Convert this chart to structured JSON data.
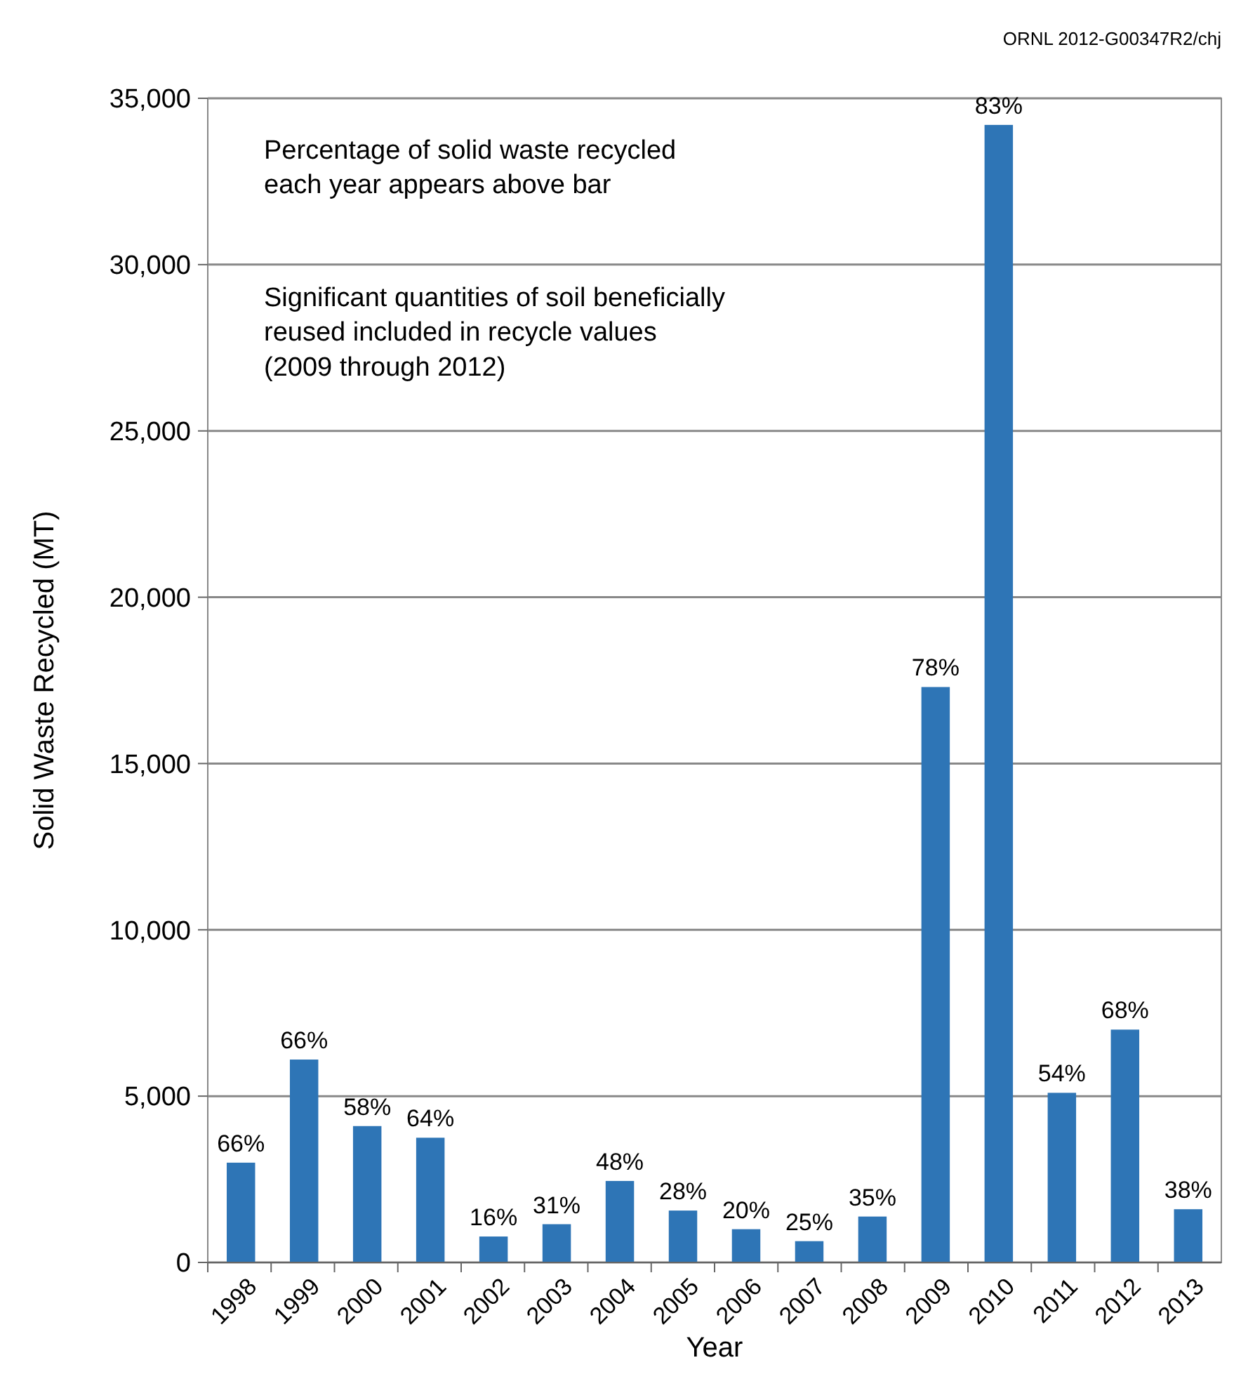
{
  "chart_data": {
    "type": "bar",
    "xlabel": "Year",
    "ylabel": "Solid Waste Recycled (MT)",
    "categories": [
      "1998",
      "1999",
      "2000",
      "2001",
      "2002",
      "2003",
      "2004",
      "2005",
      "2006",
      "2007",
      "2008",
      "2009",
      "2010",
      "2011",
      "2012",
      "2013"
    ],
    "values": [
      3000,
      6100,
      4100,
      3750,
      780,
      1150,
      2450,
      1560,
      1000,
      640,
      1380,
      17300,
      34200,
      5100,
      7000,
      1600
    ],
    "color": "#2e75b6",
    "ylim": [
      0,
      35000
    ],
    "yticks": [
      {
        "value": 0,
        "label": "0"
      },
      {
        "value": 5000,
        "label": "5,000"
      },
      {
        "value": 10000,
        "label": "10,000"
      },
      {
        "value": 15000,
        "label": "15,000"
      },
      {
        "value": 20000,
        "label": "20,000"
      },
      {
        "value": 25000,
        "label": "25,000"
      },
      {
        "value": 30000,
        "label": "30,000"
      },
      {
        "value": 35000,
        "label": "35,000"
      }
    ],
    "grid": "y",
    "annotations": [
      "Percentage of solid waste recycled\neach year appears above bar",
      "Significant quantities of soil beneficially\nreused included in recycle values\n(2009 through 2012)",
      "ORNL 2012-G00347R2/chj",
      {
        "text": "66%",
        "x": "1998",
        "y": 3000
      },
      {
        "text": "66%",
        "x": "1999",
        "y": 6100
      },
      {
        "text": "58%",
        "x": "2000",
        "y": 4100
      },
      {
        "text": "64%",
        "x": "2001",
        "y": 3750
      },
      {
        "text": "16%",
        "x": "2002",
        "y": 780
      },
      {
        "text": "31%",
        "x": "2003",
        "y": 1150
      },
      {
        "text": "48%",
        "x": "2004",
        "y": 2450
      },
      {
        "text": "28%",
        "x": "2005",
        "y": 1560
      },
      {
        "text": "20%",
        "x": "2006",
        "y": 1000
      },
      {
        "text": "25%",
        "x": "2007",
        "y": 640
      },
      {
        "text": "35%",
        "x": "2008",
        "y": 1380
      },
      {
        "text": "78%",
        "x": "2009",
        "y": 17300
      },
      {
        "text": "83%",
        "x": "2010",
        "y": 34200
      },
      {
        "text": "54%",
        "x": "2011",
        "y": 5100
      },
      {
        "text": "68%",
        "x": "2012",
        "y": 7000
      },
      {
        "text": "38%",
        "x": "2013",
        "y": 1600
      }
    ]
  }
}
